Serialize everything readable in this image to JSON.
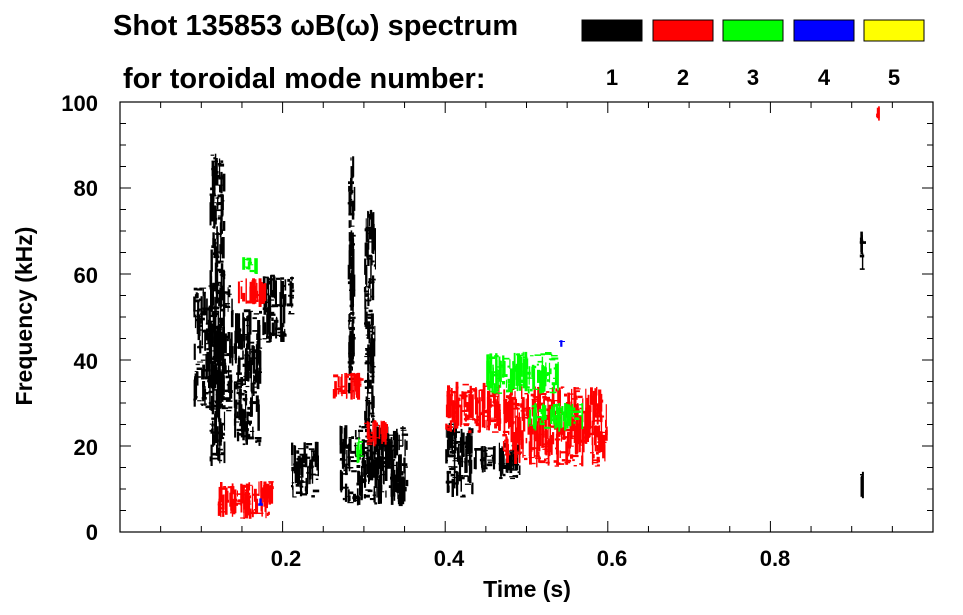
{
  "chart_data": {
    "type": "heatmap",
    "title_line1": "Shot 135853 ωB(ω) spectrum",
    "title_line2": "for toroidal mode number:",
    "xlabel": "Time (s)",
    "ylabel": "Frequency (kHz)",
    "xlim": [
      0.0,
      1.0
    ],
    "ylim": [
      0,
      100
    ],
    "x_ticks": [
      0.2,
      0.4,
      0.6,
      0.8
    ],
    "x_tick_labels": [
      "0.2",
      "0.4",
      "0.6",
      "0.8"
    ],
    "y_ticks": [
      0,
      20,
      40,
      60,
      80,
      100
    ],
    "y_tick_labels": [
      "0",
      "20",
      "40",
      "60",
      "80",
      "100"
    ],
    "legend": {
      "placement": "top-right",
      "entries": [
        {
          "label": "1",
          "color": "#000000"
        },
        {
          "label": "2",
          "color": "#ff0000"
        },
        {
          "label": "3",
          "color": "#00ff00"
        },
        {
          "label": "4",
          "color": "#0000ff"
        },
        {
          "label": "5",
          "color": "#ffff00"
        }
      ]
    },
    "series": [
      {
        "name": "1",
        "color": "#000000",
        "regions": [
          {
            "t0": 0.09,
            "t1": 0.14,
            "f0": 28,
            "f1": 58
          },
          {
            "t0": 0.11,
            "t1": 0.13,
            "f0": 15,
            "f1": 88
          },
          {
            "t0": 0.14,
            "t1": 0.175,
            "f0": 20,
            "f1": 52
          },
          {
            "t0": 0.175,
            "t1": 0.205,
            "f0": 44,
            "f1": 60
          },
          {
            "t0": 0.205,
            "t1": 0.215,
            "f0": 50,
            "f1": 60
          },
          {
            "t0": 0.21,
            "t1": 0.245,
            "f0": 8,
            "f1": 21
          },
          {
            "t0": 0.27,
            "t1": 0.355,
            "f0": 6,
            "f1": 25
          },
          {
            "t0": 0.28,
            "t1": 0.29,
            "f0": 32,
            "f1": 88
          },
          {
            "t0": 0.3,
            "t1": 0.315,
            "f0": 18,
            "f1": 75
          },
          {
            "t0": 0.4,
            "t1": 0.435,
            "f0": 8,
            "f1": 26
          },
          {
            "t0": 0.435,
            "t1": 0.465,
            "f0": 14,
            "f1": 20
          },
          {
            "t0": 0.465,
            "t1": 0.495,
            "f0": 12,
            "f1": 21
          },
          {
            "t0": 0.91,
            "t1": 0.915,
            "f0": 60,
            "f1": 70
          },
          {
            "t0": 0.91,
            "t1": 0.915,
            "f0": 8,
            "f1": 14
          }
        ]
      },
      {
        "name": "2",
        "color": "#ff0000",
        "regions": [
          {
            "t0": 0.145,
            "t1": 0.18,
            "f0": 53,
            "f1": 59
          },
          {
            "t0": 0.12,
            "t1": 0.19,
            "f0": 3,
            "f1": 12
          },
          {
            "t0": 0.26,
            "t1": 0.3,
            "f0": 31,
            "f1": 37
          },
          {
            "t0": 0.3,
            "t1": 0.33,
            "f0": 20,
            "f1": 26
          },
          {
            "t0": 0.4,
            "t1": 0.47,
            "f0": 23,
            "f1": 35
          },
          {
            "t0": 0.47,
            "t1": 0.6,
            "f0": 15,
            "f1": 34
          },
          {
            "t0": 0.93,
            "t1": 0.935,
            "f0": 96,
            "f1": 99
          }
        ]
      },
      {
        "name": "3",
        "color": "#00ff00",
        "regions": [
          {
            "t0": 0.45,
            "t1": 0.54,
            "f0": 32,
            "f1": 42
          },
          {
            "t0": 0.5,
            "t1": 0.57,
            "f0": 24,
            "f1": 30
          },
          {
            "t0": 0.15,
            "t1": 0.17,
            "f0": 60,
            "f1": 64
          },
          {
            "t0": 0.29,
            "t1": 0.3,
            "f0": 16,
            "f1": 22
          }
        ]
      },
      {
        "name": "4",
        "color": "#0000ff",
        "regions": [
          {
            "t0": 0.17,
            "t1": 0.175,
            "f0": 6,
            "f1": 8
          },
          {
            "t0": 0.54,
            "t1": 0.545,
            "f0": 42,
            "f1": 45
          }
        ]
      },
      {
        "name": "5",
        "color": "#ffff00",
        "regions": []
      }
    ]
  }
}
